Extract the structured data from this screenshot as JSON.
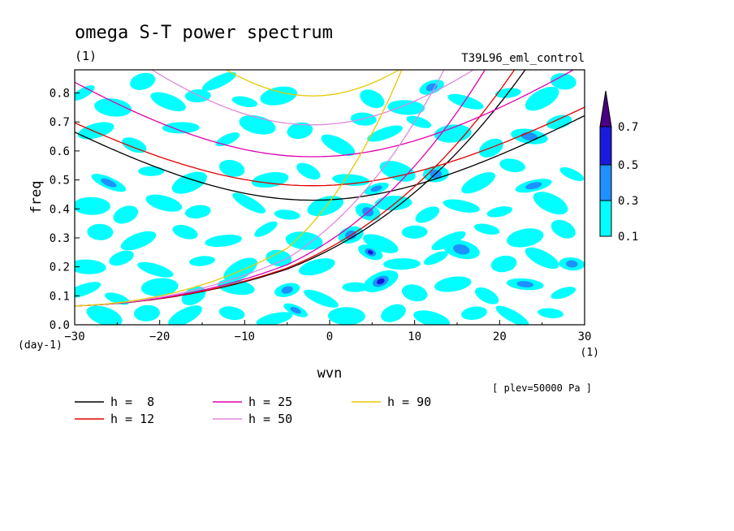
{
  "chart_data": {
    "type": "heatmap",
    "title": "omega S-T power spectrum",
    "subtitle_left": "(1)",
    "subtitle_right": "T39L96_eml_control",
    "xlabel": "wvn",
    "ylabel": "freq",
    "x_unit": "(1)",
    "y_unit": "(day-1)",
    "xlim": [
      -30,
      30
    ],
    "ylim": [
      0,
      0.88
    ],
    "xticks": [
      -30,
      -20,
      -10,
      0,
      10,
      20,
      30
    ],
    "yticks": [
      0.0,
      0.1,
      0.2,
      0.3,
      0.4,
      0.5,
      0.6,
      0.7,
      0.8
    ],
    "note": "[ plev=50000 Pa ]",
    "grid": false,
    "colorbar": {
      "levels": [
        "0.1",
        "0.3",
        "0.5",
        "0.7"
      ],
      "colors": [
        "#00ffff",
        "#1e90ff",
        "#1a1adc",
        "#4b0082"
      ]
    },
    "dispersion_curves": [
      {
        "label": "h =  8",
        "h": 8,
        "color": "#000000"
      },
      {
        "label": "h = 12",
        "h": 12,
        "color": "#e00000"
      },
      {
        "label": "h = 25",
        "h": 25,
        "color": "#e000b0"
      },
      {
        "label": "h = 50",
        "h": 50,
        "color": "#dd88dd"
      },
      {
        "label": "h = 90",
        "h": 90,
        "color": "#e8c800"
      }
    ],
    "patches": [
      {
        "x": -29.0,
        "y": 0.8,
        "v": 0.15
      },
      {
        "x": -25.5,
        "y": 0.75,
        "v": 0.15
      },
      {
        "x": -22.0,
        "y": 0.84,
        "v": 0.12
      },
      {
        "x": -19.0,
        "y": 0.77,
        "v": 0.15
      },
      {
        "x": -15.5,
        "y": 0.79,
        "v": 0.15
      },
      {
        "x": -13.0,
        "y": 0.84,
        "v": 0.12
      },
      {
        "x": -10.0,
        "y": 0.77,
        "v": 0.15
      },
      {
        "x": -6.0,
        "y": 0.79,
        "v": 0.15
      },
      {
        "x": 5.0,
        "y": 0.78,
        "v": 0.15
      },
      {
        "x": 9.0,
        "y": 0.75,
        "v": 0.15
      },
      {
        "x": 12.0,
        "y": 0.82,
        "v": 0.4
      },
      {
        "x": 16.0,
        "y": 0.77,
        "v": 0.15
      },
      {
        "x": 21.0,
        "y": 0.8,
        "v": 0.15
      },
      {
        "x": 25.0,
        "y": 0.78,
        "v": 0.15
      },
      {
        "x": 27.5,
        "y": 0.84,
        "v": 0.12
      },
      {
        "x": -27.5,
        "y": 0.67,
        "v": 0.12
      },
      {
        "x": -23.0,
        "y": 0.62,
        "v": 0.15
      },
      {
        "x": -17.5,
        "y": 0.68,
        "v": 0.15
      },
      {
        "x": -12.0,
        "y": 0.64,
        "v": 0.15
      },
      {
        "x": -8.5,
        "y": 0.69,
        "v": 0.12
      },
      {
        "x": -3.5,
        "y": 0.67,
        "v": 0.15
      },
      {
        "x": 1.0,
        "y": 0.62,
        "v": 0.12
      },
      {
        "x": 4.0,
        "y": 0.71,
        "v": 0.15
      },
      {
        "x": 6.5,
        "y": 0.66,
        "v": 0.15
      },
      {
        "x": 10.5,
        "y": 0.7,
        "v": 0.15
      },
      {
        "x": 14.5,
        "y": 0.66,
        "v": 0.15
      },
      {
        "x": 19.0,
        "y": 0.61,
        "v": 0.15
      },
      {
        "x": 23.5,
        "y": 0.65,
        "v": 0.3
      },
      {
        "x": 27.0,
        "y": 0.7,
        "v": 0.12
      },
      {
        "x": -26.0,
        "y": 0.49,
        "v": 0.35
      },
      {
        "x": -21.0,
        "y": 0.53,
        "v": 0.12
      },
      {
        "x": -16.5,
        "y": 0.49,
        "v": 0.15
      },
      {
        "x": -11.5,
        "y": 0.54,
        "v": 0.15
      },
      {
        "x": -7.0,
        "y": 0.5,
        "v": 0.15
      },
      {
        "x": -2.5,
        "y": 0.53,
        "v": 0.12
      },
      {
        "x": 2.5,
        "y": 0.5,
        "v": 0.15
      },
      {
        "x": 5.5,
        "y": 0.47,
        "v": 0.35
      },
      {
        "x": 8.0,
        "y": 0.53,
        "v": 0.15
      },
      {
        "x": 12.5,
        "y": 0.52,
        "v": 0.3
      },
      {
        "x": 17.5,
        "y": 0.49,
        "v": 0.15
      },
      {
        "x": 21.5,
        "y": 0.55,
        "v": 0.12
      },
      {
        "x": 24.0,
        "y": 0.48,
        "v": 0.3
      },
      {
        "x": 28.5,
        "y": 0.52,
        "v": 0.15
      },
      {
        "x": -28.0,
        "y": 0.41,
        "v": 0.15
      },
      {
        "x": -24.0,
        "y": 0.38,
        "v": 0.12
      },
      {
        "x": -19.5,
        "y": 0.42,
        "v": 0.15
      },
      {
        "x": -15.5,
        "y": 0.39,
        "v": 0.15
      },
      {
        "x": -9.5,
        "y": 0.42,
        "v": 0.15
      },
      {
        "x": -5.0,
        "y": 0.38,
        "v": 0.12
      },
      {
        "x": -0.5,
        "y": 0.41,
        "v": 0.15
      },
      {
        "x": 4.5,
        "y": 0.39,
        "v": 0.3
      },
      {
        "x": 7.5,
        "y": 0.42,
        "v": 0.15
      },
      {
        "x": 11.5,
        "y": 0.38,
        "v": 0.15
      },
      {
        "x": 15.5,
        "y": 0.41,
        "v": 0.15
      },
      {
        "x": 20.0,
        "y": 0.39,
        "v": 0.12
      },
      {
        "x": 26.0,
        "y": 0.42,
        "v": 0.15
      },
      {
        "x": -27.0,
        "y": 0.32,
        "v": 0.12
      },
      {
        "x": -22.5,
        "y": 0.29,
        "v": 0.15
      },
      {
        "x": -17.0,
        "y": 0.32,
        "v": 0.15
      },
      {
        "x": -12.5,
        "y": 0.29,
        "v": 0.12
      },
      {
        "x": -7.5,
        "y": 0.33,
        "v": 0.15
      },
      {
        "x": -3.0,
        "y": 0.29,
        "v": 0.15
      },
      {
        "x": 2.5,
        "y": 0.31,
        "v": 0.3
      },
      {
        "x": 6.0,
        "y": 0.28,
        "v": 0.15
      },
      {
        "x": 10.0,
        "y": 0.32,
        "v": 0.15
      },
      {
        "x": 14.0,
        "y": 0.29,
        "v": 0.15
      },
      {
        "x": 18.5,
        "y": 0.33,
        "v": 0.15
      },
      {
        "x": 23.0,
        "y": 0.3,
        "v": 0.15
      },
      {
        "x": 27.5,
        "y": 0.33,
        "v": 0.12
      },
      {
        "x": -28.5,
        "y": 0.2,
        "v": 0.15
      },
      {
        "x": -24.5,
        "y": 0.23,
        "v": 0.12
      },
      {
        "x": -20.5,
        "y": 0.19,
        "v": 0.15
      },
      {
        "x": -15.0,
        "y": 0.22,
        "v": 0.15
      },
      {
        "x": -10.5,
        "y": 0.19,
        "v": 0.12
      },
      {
        "x": -6.0,
        "y": 0.23,
        "v": 0.15
      },
      {
        "x": -1.5,
        "y": 0.2,
        "v": 0.15
      },
      {
        "x": 4.8,
        "y": 0.25,
        "v": 0.5
      },
      {
        "x": 8.5,
        "y": 0.21,
        "v": 0.15
      },
      {
        "x": 12.5,
        "y": 0.23,
        "v": 0.15
      },
      {
        "x": 15.5,
        "y": 0.26,
        "v": 0.3
      },
      {
        "x": 20.5,
        "y": 0.21,
        "v": 0.15
      },
      {
        "x": 25.0,
        "y": 0.23,
        "v": 0.15
      },
      {
        "x": 28.5,
        "y": 0.21,
        "v": 0.3
      },
      {
        "x": -29.0,
        "y": 0.12,
        "v": 0.15
      },
      {
        "x": -25.0,
        "y": 0.09,
        "v": 0.15
      },
      {
        "x": -20.0,
        "y": 0.13,
        "v": 0.15
      },
      {
        "x": -16.0,
        "y": 0.1,
        "v": 0.12
      },
      {
        "x": -11.0,
        "y": 0.13,
        "v": 0.15
      },
      {
        "x": -5.0,
        "y": 0.12,
        "v": 0.3
      },
      {
        "x": -1.0,
        "y": 0.09,
        "v": 0.15
      },
      {
        "x": 3.0,
        "y": 0.13,
        "v": 0.15
      },
      {
        "x": 6.0,
        "y": 0.15,
        "v": 0.5
      },
      {
        "x": 10.0,
        "y": 0.11,
        "v": 0.15
      },
      {
        "x": 14.5,
        "y": 0.14,
        "v": 0.15
      },
      {
        "x": 18.5,
        "y": 0.1,
        "v": 0.12
      },
      {
        "x": 23.0,
        "y": 0.14,
        "v": 0.3
      },
      {
        "x": 27.5,
        "y": 0.11,
        "v": 0.15
      },
      {
        "x": -26.5,
        "y": 0.03,
        "v": 0.15
      },
      {
        "x": -21.5,
        "y": 0.04,
        "v": 0.12
      },
      {
        "x": -17.0,
        "y": 0.03,
        "v": 0.15
      },
      {
        "x": -11.5,
        "y": 0.04,
        "v": 0.15
      },
      {
        "x": -6.5,
        "y": 0.02,
        "v": 0.12
      },
      {
        "x": -4.0,
        "y": 0.05,
        "v": 0.3
      },
      {
        "x": 2.0,
        "y": 0.03,
        "v": 0.15
      },
      {
        "x": 7.5,
        "y": 0.04,
        "v": 0.15
      },
      {
        "x": 12.0,
        "y": 0.02,
        "v": 0.15
      },
      {
        "x": 17.0,
        "y": 0.04,
        "v": 0.12
      },
      {
        "x": 21.5,
        "y": 0.03,
        "v": 0.15
      },
      {
        "x": 26.0,
        "y": 0.04,
        "v": 0.15
      }
    ]
  }
}
